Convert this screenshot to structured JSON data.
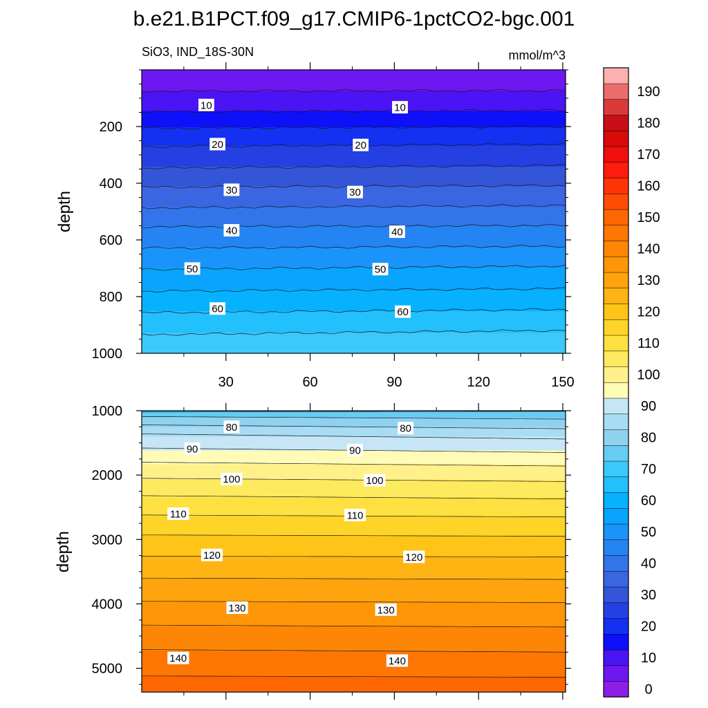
{
  "figure": {
    "title": "b.e21.B1PCT.f09_g17.CMIP6-1pctCO2-bgc.001",
    "subtitle_left": "SiO3, IND_18S-30N",
    "subtitle_right": "mmol/m^3"
  },
  "chart_data": [
    {
      "type": "heatmap",
      "panel": "upper",
      "ylabel": "depth",
      "xlabel": "",
      "xlim": [
        0,
        151
      ],
      "ylim": [
        1000,
        0
      ],
      "x_ticks": [
        30,
        60,
        90,
        120,
        150
      ],
      "y_ticks": [
        200,
        400,
        600,
        800,
        1000
      ],
      "contour_levels": [
        5,
        10,
        15,
        20,
        25,
        30,
        35,
        40,
        45,
        50,
        55,
        60,
        65
      ],
      "contour_depths_start": [
        75,
        148,
        206,
        271,
        347,
        414,
        487,
        554,
        629,
        704,
        781,
        857,
        934
      ],
      "contour_depths_end": [
        73,
        143,
        200,
        262,
        337,
        408,
        478,
        549,
        622,
        692,
        772,
        845,
        919
      ],
      "contour_labels": [
        {
          "text": "10",
          "x": 23,
          "depth": 124
        },
        {
          "text": "10",
          "x": 92,
          "depth": 132
        },
        {
          "text": "20",
          "x": 27,
          "depth": 262
        },
        {
          "text": "20",
          "x": 78,
          "depth": 265
        },
        {
          "text": "30",
          "x": 32,
          "depth": 423
        },
        {
          "text": "30",
          "x": 76,
          "depth": 431
        },
        {
          "text": "40",
          "x": 32,
          "depth": 566
        },
        {
          "text": "40",
          "x": 91,
          "depth": 571
        },
        {
          "text": "50",
          "x": 18,
          "depth": 701
        },
        {
          "text": "50",
          "x": 85,
          "depth": 703
        },
        {
          "text": "60",
          "x": 27,
          "depth": 842
        },
        {
          "text": "60",
          "x": 93,
          "depth": 853
        }
      ]
    },
    {
      "type": "heatmap",
      "panel": "lower",
      "ylabel": "depth",
      "xlabel": "",
      "xlim": [
        0,
        151
      ],
      "ylim": [
        5370,
        1000
      ],
      "x_ticks": [
        30,
        60,
        90,
        120,
        150
      ],
      "y_ticks": [
        1000,
        2000,
        3000,
        4000,
        5000
      ],
      "contour_levels": [
        70,
        75,
        80,
        85,
        90,
        95,
        100,
        105,
        110,
        115,
        120,
        125,
        130,
        135,
        140,
        145
      ],
      "contour_depths_start": [
        1020,
        1090,
        1220,
        1360,
        1580,
        1800,
        2050,
        2320,
        2620,
        2930,
        3260,
        3600,
        3960,
        4330,
        4710,
        5120
      ],
      "contour_depths_end": [
        1010,
        1130,
        1280,
        1440,
        1650,
        1860,
        2100,
        2370,
        2650,
        2950,
        3270,
        3620,
        3980,
        4360,
        4750,
        5140
      ],
      "contour_labels": [
        {
          "text": "80",
          "x": 32,
          "depth": 1250
        },
        {
          "text": "80",
          "x": 94,
          "depth": 1270
        },
        {
          "text": "90",
          "x": 18,
          "depth": 1590
        },
        {
          "text": "90",
          "x": 76,
          "depth": 1610
        },
        {
          "text": "100",
          "x": 32,
          "depth": 2060
        },
        {
          "text": "100",
          "x": 83,
          "depth": 2080
        },
        {
          "text": "110",
          "x": 13,
          "depth": 2600
        },
        {
          "text": "110",
          "x": 76,
          "depth": 2620
        },
        {
          "text": "120",
          "x": 25,
          "depth": 3240
        },
        {
          "text": "120",
          "x": 97,
          "depth": 3270
        },
        {
          "text": "130",
          "x": 34,
          "depth": 4060
        },
        {
          "text": "130",
          "x": 87,
          "depth": 4090
        },
        {
          "text": "140",
          "x": 13,
          "depth": 4840
        },
        {
          "text": "140",
          "x": 91,
          "depth": 4880
        }
      ]
    }
  ],
  "colorbar": {
    "labels": [
      "0",
      "10",
      "20",
      "30",
      "40",
      "50",
      "60",
      "70",
      "80",
      "90",
      "100",
      "110",
      "120",
      "130",
      "140",
      "150",
      "160",
      "170",
      "180",
      "190"
    ],
    "colors": [
      "#8c1ee8",
      "#6f17f0",
      "#4a14f5",
      "#0d10f8",
      "#1430f0",
      "#2440e2",
      "#3355d8",
      "#3a66e2",
      "#3274ea",
      "#2484f2",
      "#1a94fa",
      "#08a4fe",
      "#06b2fe",
      "#22c0fc",
      "#3cc8f8",
      "#66ccf4",
      "#8ed2f0",
      "#a8dcf2",
      "#c6e6f6",
      "#fefcb6",
      "#fff08a",
      "#feea5e",
      "#fee040",
      "#fed428",
      "#fec418",
      "#feb412",
      "#fea40c",
      "#fe9608",
      "#fe8606",
      "#fe7604",
      "#fe6602",
      "#fe4c04",
      "#fe3408",
      "#fe1c0c",
      "#f00e0e",
      "#d80a0a",
      "#c80e16",
      "#da3a3a",
      "#ec6c6c",
      "#fcb0b0"
    ]
  }
}
